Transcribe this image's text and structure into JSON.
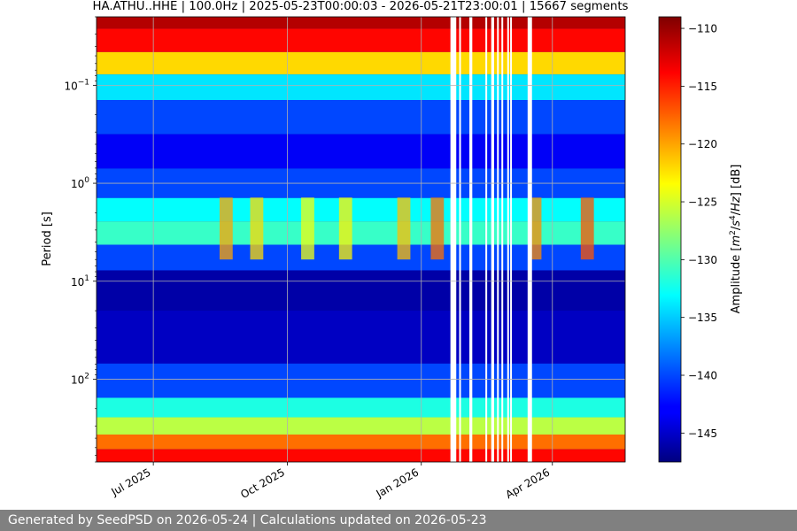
{
  "chart_data": {
    "type": "heatmap",
    "title": "HA.ATHU..HHE | 100.0Hz | 2025-05-23T00:00:03 - 2026-05-21T23:00:01 | 15667 segments",
    "xlabel": "",
    "ylabel": "Period [s]",
    "y_scale": "log",
    "y_inverted": true,
    "ylim": [
      0.02,
      700
    ],
    "xlim": [
      "2025-05-23",
      "2026-05-21"
    ],
    "x_ticks": [
      {
        "date": "2025-07-01",
        "label": "Jul 2025"
      },
      {
        "date": "2025-10-01",
        "label": "Oct 2025"
      },
      {
        "date": "2026-01-01",
        "label": "Jan 2026"
      },
      {
        "date": "2026-04-01",
        "label": "Apr 2026"
      }
    ],
    "y_ticks": [
      {
        "value": 0.1,
        "label": "10^-1"
      },
      {
        "value": 1,
        "label": "10^0"
      },
      {
        "value": 10,
        "label": "10^1"
      },
      {
        "value": 100,
        "label": "10^2"
      }
    ],
    "grid": true,
    "colormap": "jet",
    "colorbar": {
      "label": "Amplitude [m^2/s^4/Hz] [dB]",
      "range": [
        -147.5,
        -109
      ],
      "ticks": [
        -110,
        -115,
        -120,
        -125,
        -130,
        -135,
        -140,
        -145
      ]
    },
    "period_profile_db": [
      {
        "period": 0.02,
        "db": -111
      },
      {
        "period": 0.035,
        "db": -114
      },
      {
        "period": 0.06,
        "db": -122
      },
      {
        "period": 0.1,
        "db": -134
      },
      {
        "period": 0.2,
        "db": -140
      },
      {
        "period": 0.5,
        "db": -143
      },
      {
        "period": 1.0,
        "db": -140
      },
      {
        "period": 2.0,
        "db": -133
      },
      {
        "period": 3.0,
        "db": -131
      },
      {
        "period": 6.0,
        "db": -140
      },
      {
        "period": 10,
        "db": -146
      },
      {
        "period": 40,
        "db": -145
      },
      {
        "period": 120,
        "db": -140
      },
      {
        "period": 200,
        "db": -132
      },
      {
        "period": 300,
        "db": -126
      },
      {
        "period": 450,
        "db": -118
      },
      {
        "period": 600,
        "db": -114
      }
    ],
    "data_gaps": [
      [
        "2026-01-21",
        "2026-01-25"
      ],
      [
        "2026-01-27",
        "2026-01-28"
      ],
      [
        "2026-02-03",
        "2026-02-05"
      ],
      [
        "2026-02-14",
        "2026-02-15"
      ],
      [
        "2026-02-18",
        "2026-02-20"
      ],
      [
        "2026-02-22",
        "2026-02-23"
      ],
      [
        "2026-02-25",
        "2026-02-26"
      ],
      [
        "2026-03-01",
        "2026-03-02"
      ],
      [
        "2026-03-03",
        "2026-03-04"
      ],
      [
        "2026-03-15",
        "2026-03-18"
      ]
    ],
    "peak_periods": [
      {
        "date": "2025-08-20",
        "db": -120
      },
      {
        "date": "2025-09-10",
        "db": -122
      },
      {
        "date": "2025-10-15",
        "db": -124
      },
      {
        "date": "2025-11-10",
        "db": -123
      },
      {
        "date": "2025-12-20",
        "db": -121
      },
      {
        "date": "2026-01-12",
        "db": -118
      },
      {
        "date": "2026-03-20",
        "db": -119
      },
      {
        "date": "2026-04-25",
        "db": -117
      }
    ]
  },
  "footer": {
    "text": "Generated by SeedPSD on 2026-05-24 | Calculations updated on 2026-05-23"
  }
}
